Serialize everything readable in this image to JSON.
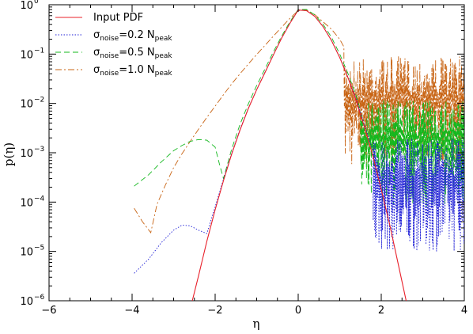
{
  "chart_data": {
    "type": "line",
    "title": "",
    "xlabel": "η",
    "ylabel": "p(η)",
    "xlim": [
      -6,
      4
    ],
    "ylim": [
      1e-06,
      1
    ],
    "yscale": "log",
    "x_ticks": [
      -6,
      -4,
      -2,
      0,
      2,
      4
    ],
    "x_tick_labels": [
      "−6",
      "−4",
      "−2",
      "0",
      "2",
      "4"
    ],
    "y_ticks": [
      1e-06,
      1e-05,
      0.0001,
      0.001,
      0.01,
      0.1,
      1
    ],
    "y_tick_bases": [
      "10",
      "10",
      "10",
      "10",
      "10",
      "10",
      "10"
    ],
    "y_tick_exps": [
      "−6",
      "−5",
      "−4",
      "−3",
      "−2",
      "−1",
      "0"
    ],
    "legend_position": "top-left",
    "series": [
      {
        "name": "Input PDF",
        "color": "#e8202a",
        "dash": "solid",
        "x": [
          -2.55,
          -2.4,
          -2.2,
          -2.0,
          -1.8,
          -1.6,
          -1.4,
          -1.2,
          -1.0,
          -0.8,
          -0.6,
          -0.4,
          -0.2,
          0.0,
          0.2,
          0.4,
          0.6,
          0.8,
          1.0,
          1.2,
          1.4,
          1.6,
          1.8,
          2.0,
          2.2,
          2.4,
          2.6
        ],
        "y": [
          1e-06,
          3.2e-06,
          1.6e-05,
          7e-05,
          0.00027,
          0.00095,
          0.0029,
          0.0079,
          0.019,
          0.042,
          0.095,
          0.21,
          0.42,
          0.78,
          0.76,
          0.58,
          0.36,
          0.19,
          0.085,
          0.033,
          0.011,
          0.0032,
          0.00085,
          0.00018,
          3.6e-05,
          6e-06,
          1e-06
        ]
      },
      {
        "name": "σnoise=0.2 Npeak",
        "color": "#1f1fd6",
        "dash": "dotted",
        "x": [
          -3.95,
          -3.6,
          -3.3,
          -3.0,
          -2.8,
          -2.6,
          -2.4,
          -2.2,
          -2.0,
          -1.8,
          -1.6,
          -1.4,
          -1.2,
          -1.0,
          -0.8,
          -0.6,
          -0.4,
          -0.2,
          0.0,
          0.2,
          0.4,
          0.6,
          0.8,
          1.0,
          1.2,
          1.4,
          1.6,
          1.8,
          2.0
        ],
        "y": [
          3.6e-06,
          7e-06,
          1.5e-05,
          2.7e-05,
          3.4e-05,
          3.3e-05,
          2.7e-05,
          2.3e-05,
          8e-05,
          0.00029,
          0.00098,
          0.003,
          0.008,
          0.019,
          0.043,
          0.096,
          0.21,
          0.42,
          0.79,
          0.76,
          0.58,
          0.36,
          0.19,
          0.086,
          0.034,
          0.012,
          0.0036,
          0.0011,
          0.0003
        ],
        "noise_band": [
          1.8,
          4.0,
          1e-05,
          0.002
        ]
      },
      {
        "name": "σnoise=0.5 Npeak",
        "color": "#14b81e",
        "dash": "dashed",
        "x": [
          -3.95,
          -3.6,
          -3.3,
          -3.0,
          -2.8,
          -2.6,
          -2.4,
          -2.2,
          -2.0,
          -1.9,
          -1.8,
          -1.6,
          -1.4,
          -1.2,
          -1.0,
          -0.8,
          -0.6,
          -0.4,
          -0.2,
          0.0,
          0.2,
          0.4,
          0.6,
          0.8,
          1.0,
          1.2,
          1.4,
          1.5
        ],
        "y": [
          0.00021,
          0.00036,
          0.00065,
          0.0011,
          0.0014,
          0.0017,
          0.00185,
          0.0018,
          0.0013,
          0.0006,
          0.0003,
          0.0012,
          0.0038,
          0.0098,
          0.023,
          0.05,
          0.11,
          0.23,
          0.45,
          0.8,
          0.8,
          0.62,
          0.4,
          0.22,
          0.1,
          0.04,
          0.014,
          0.007
        ],
        "noise_band": [
          1.5,
          4.0,
          8e-05,
          0.012
        ]
      },
      {
        "name": "σnoise=1.0 Npeak",
        "color": "#c86414",
        "dash": "dashdot",
        "x": [
          -3.95,
          -3.75,
          -3.55,
          -3.4,
          -3.2,
          -3.0,
          -2.8,
          -2.6,
          -2.4,
          -2.2,
          -2.0,
          -1.8,
          -1.6,
          -1.4,
          -1.2,
          -1.0,
          -0.8,
          -0.6,
          -0.4,
          -0.2,
          0.0,
          0.2,
          0.4,
          0.6,
          0.8,
          1.0,
          1.1
        ],
        "y": [
          7.5e-05,
          4e-05,
          2.4e-05,
          9e-05,
          0.00022,
          0.0005,
          0.00095,
          0.0017,
          0.003,
          0.0052,
          0.0088,
          0.015,
          0.025,
          0.04,
          0.063,
          0.098,
          0.15,
          0.23,
          0.35,
          0.53,
          0.76,
          0.78,
          0.63,
          0.45,
          0.32,
          0.2,
          0.14
        ],
        "noise_band": [
          1.1,
          4.0,
          0.0005,
          0.09
        ]
      }
    ]
  }
}
